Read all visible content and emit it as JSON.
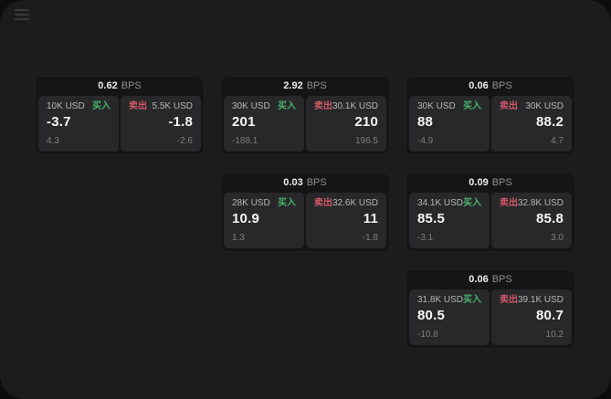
{
  "window": {
    "menu_icon": "hamburger-menu"
  },
  "colors": {
    "buy_green": "#47b46d",
    "sell_red": "#cf5967",
    "window_bg": "#1c1c1d",
    "card_bg": "#151516",
    "panel_bg": "#28282a"
  },
  "labels": {
    "bps_unit": "BPS",
    "buy": "买入",
    "sell": "卖出"
  },
  "cards": [
    {
      "row": 1,
      "col": 1,
      "bps": "0.62",
      "buy": {
        "amount": "10K USD",
        "price": "-3.7",
        "delta": "4.3"
      },
      "sell": {
        "amount": "5.5K USD",
        "price": "-1.8",
        "delta": "-2.6"
      }
    },
    {
      "row": 1,
      "col": 2,
      "bps": "2.92",
      "buy": {
        "amount": "30K USD",
        "price": "201",
        "delta": "-188.1"
      },
      "sell": {
        "amount": "30.1K USD",
        "price": "210",
        "delta": "196.5"
      }
    },
    {
      "row": 1,
      "col": 3,
      "bps": "0.06",
      "buy": {
        "amount": "30K USD",
        "price": "88",
        "delta": "-4.9"
      },
      "sell": {
        "amount": "30K USD",
        "price": "88.2",
        "delta": "4.7"
      }
    },
    {
      "row": 2,
      "col": 2,
      "bps": "0.03",
      "buy": {
        "amount": "28K USD",
        "price": "10.9",
        "delta": "1.3"
      },
      "sell": {
        "amount": "32.6K USD",
        "price": "11",
        "delta": "-1.8"
      }
    },
    {
      "row": 2,
      "col": 3,
      "bps": "0.09",
      "buy": {
        "amount": "34.1K USD",
        "price": "85.5",
        "delta": "-3.1"
      },
      "sell": {
        "amount": "32.8K USD",
        "price": "85.8",
        "delta": "3.0"
      }
    },
    {
      "row": 3,
      "col": 3,
      "bps": "0.06",
      "buy": {
        "amount": "31.8K USD",
        "price": "80.5",
        "delta": "-10.8"
      },
      "sell": {
        "amount": "39.1K USD",
        "price": "80.7",
        "delta": "10.2"
      }
    }
  ]
}
